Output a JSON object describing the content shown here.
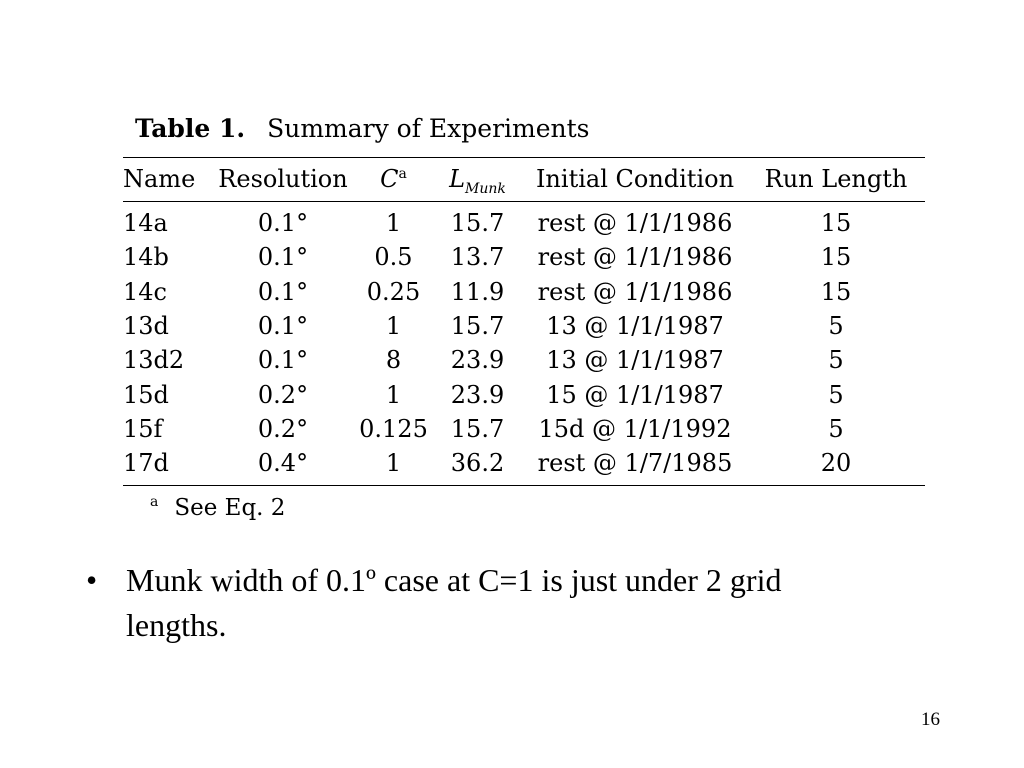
{
  "caption": {
    "label": "Table 1.",
    "title": "Summary of Experiments"
  },
  "table": {
    "headers": {
      "name": "Name",
      "resolution": "Resolution",
      "c_symbol": "C",
      "c_superscript": "a",
      "l_symbol": "L",
      "l_subscript": "Munk",
      "initial_condition": "Initial Condition",
      "run_length": "Run Length"
    },
    "rows": [
      [
        "14a",
        "0.1°",
        "1",
        "15.7",
        "rest @ 1/1/1986",
        "15"
      ],
      [
        "14b",
        "0.1°",
        "0.5",
        "13.7",
        "rest @ 1/1/1986",
        "15"
      ],
      [
        "14c",
        "0.1°",
        "0.25",
        "11.9",
        "rest @ 1/1/1986",
        "15"
      ],
      [
        "13d",
        "0.1°",
        "1",
        "15.7",
        "13 @ 1/1/1987",
        "5"
      ],
      [
        "13d2",
        "0.1°",
        "8",
        "23.9",
        "13 @ 1/1/1987",
        "5"
      ],
      [
        "15d",
        "0.2°",
        "1",
        "23.9",
        "15 @ 1/1/1987",
        "5"
      ],
      [
        "15f",
        "0.2°",
        "0.125",
        "15.7",
        "15d @ 1/1/1992",
        "5"
      ],
      [
        "17d",
        "0.4°",
        "1",
        "36.2",
        "rest @ 1/7/1985",
        "20"
      ]
    ]
  },
  "footnote": {
    "mark": "a",
    "text": "See Eq. 2"
  },
  "bullet": {
    "symbol": "•",
    "text": "Munk width of 0.1º case at C=1 is just under 2 grid lengths."
  },
  "page_number": "16"
}
